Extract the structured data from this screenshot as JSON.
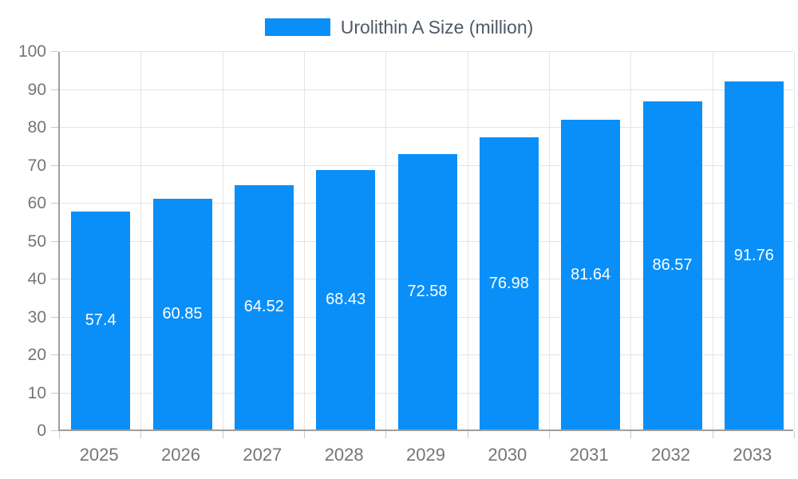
{
  "legend": {
    "label": "Urolithin A Size (million)"
  },
  "colors": {
    "bar": "#0A8FF8",
    "axis": "#9E9E9E",
    "grid": "#E4E4E4",
    "tick": "#C9C9C9",
    "axis_label": "#757575",
    "value_label": "#FFFFFF",
    "legend_text": "#4D5A66",
    "background": "#FFFFFF"
  },
  "chart_data": {
    "type": "bar",
    "title": "",
    "xlabel": "",
    "ylabel": "",
    "categories": [
      "2025",
      "2026",
      "2027",
      "2028",
      "2029",
      "2030",
      "2031",
      "2032",
      "2033"
    ],
    "series": [
      {
        "name": "Urolithin A Size (million)",
        "values": [
          57.4,
          60.85,
          64.52,
          68.43,
          72.58,
          76.98,
          81.64,
          86.57,
          91.76
        ]
      }
    ],
    "ylim": [
      0,
      100
    ],
    "ytick_step": 10,
    "yticks": [
      0,
      10,
      20,
      30,
      40,
      50,
      60,
      70,
      80,
      90,
      100
    ],
    "grid": true,
    "legend_position": "top-center",
    "value_labels": "inside-center"
  }
}
